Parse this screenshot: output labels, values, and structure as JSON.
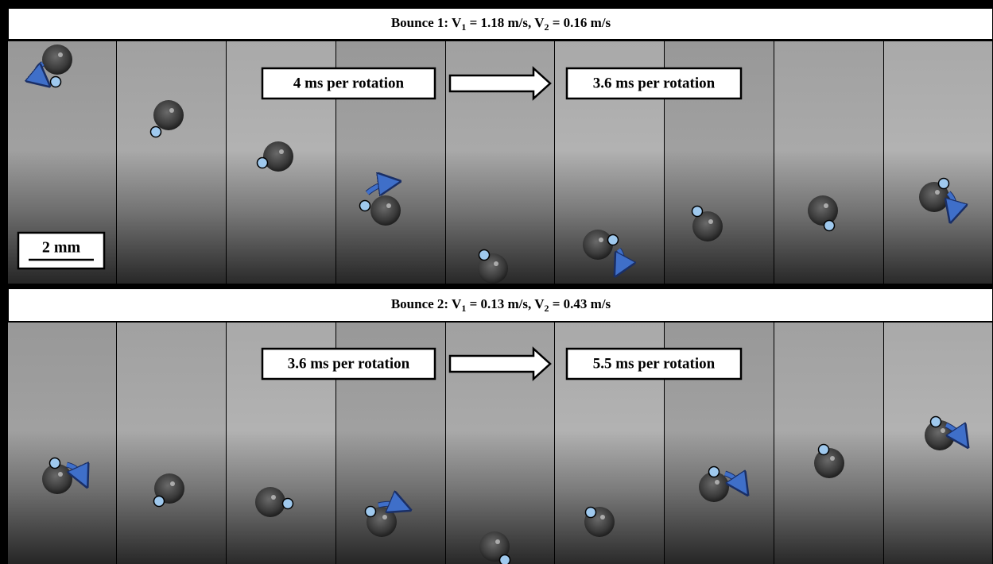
{
  "panels": [
    {
      "title": [
        "Bounce 1: V",
        "1",
        " = 1.18 m/s, V",
        "2",
        " = 0.16 m/s"
      ],
      "before_label": "4 ms per rotation",
      "after_label": "3.6 ms per rotation"
    },
    {
      "title": [
        "Bounce 2: V",
        "1",
        " = 0.13 m/s, V",
        "2",
        " = 0.43 m/s"
      ],
      "before_label": "3.6 ms per rotation",
      "after_label": "5.5 ms per rotation"
    }
  ],
  "scale_bar": "2 mm"
}
